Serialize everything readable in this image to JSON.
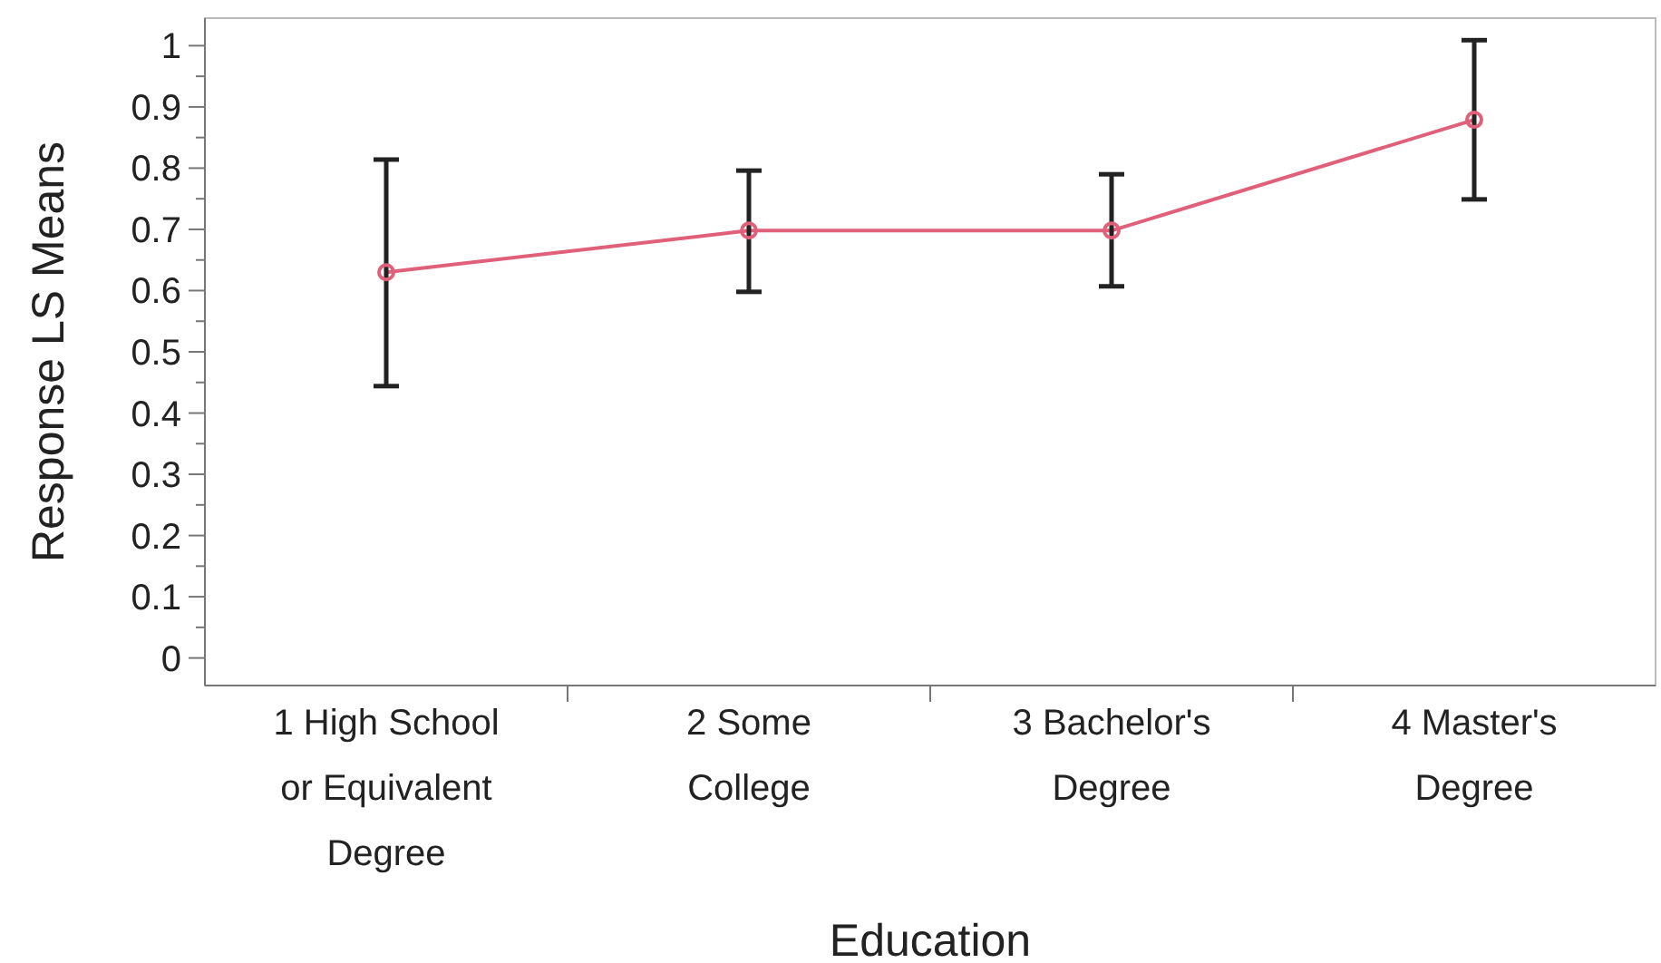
{
  "chart_data": {
    "type": "line",
    "xlabel": "Education",
    "ylabel": "Response LS Means",
    "categories": [
      "1 High School or Equivalent Degree",
      "2 Some College",
      "3 Bachelor's Degree",
      "4 Master's Degree"
    ],
    "series": [
      {
        "color": "#e0607a",
        "values": [
          0.63,
          0.698,
          0.698,
          0.879
        ],
        "errors": [
          [
            0.444,
            0.814
          ],
          [
            0.598,
            0.796
          ],
          [
            0.607,
            0.79
          ],
          [
            0.749,
            1.009
          ]
        ]
      }
    ],
    "ylim": [
      -0.045,
      1.045
    ],
    "yticks": [
      0,
      {
        "value": 0.05,
        "label": null
      },
      0.1,
      {
        "value": 0.15,
        "label": null
      },
      0.2,
      {
        "value": 0.25,
        "label": null
      },
      0.3,
      {
        "value": 0.35,
        "label": null
      },
      0.4,
      {
        "value": 0.45,
        "label": null
      },
      0.5,
      {
        "value": 0.55,
        "label": null
      },
      0.6,
      {
        "value": 0.65,
        "label": null
      },
      0.7,
      {
        "value": 0.75,
        "label": null
      },
      0.8,
      {
        "value": 0.85,
        "label": null
      },
      0.9,
      {
        "value": 0.95,
        "label": null
      },
      1
    ],
    "marker": "circle",
    "grid": false
  }
}
